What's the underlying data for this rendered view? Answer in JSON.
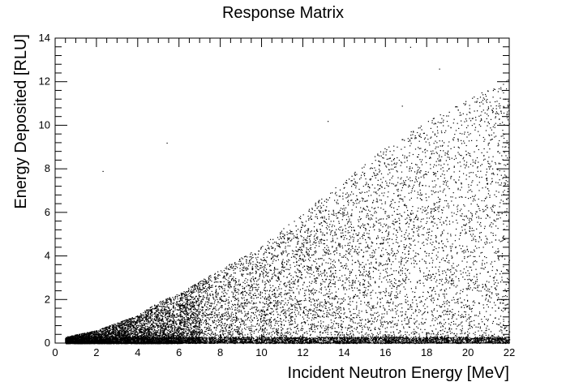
{
  "chart_data": {
    "type": "scatter",
    "title": "Response Matrix",
    "xlabel": "Incident Neutron Energy [MeV]",
    "ylabel": "Energy Deposited [RLU]",
    "xlim": [
      0,
      22
    ],
    "ylim": [
      0,
      14
    ],
    "x_ticks": [
      0,
      2,
      4,
      6,
      8,
      10,
      12,
      14,
      16,
      18,
      20,
      22
    ],
    "y_ticks": [
      0,
      2,
      4,
      6,
      8,
      10,
      12,
      14
    ],
    "x_tick_labels": [
      "0",
      "2",
      "4",
      "6",
      "8",
      "10",
      "12",
      "14",
      "16",
      "18",
      "20",
      "22"
    ],
    "y_tick_labels": [
      "0",
      "2",
      "4",
      "6",
      "8",
      "10",
      "12",
      "14"
    ],
    "grid": false,
    "legend": "none",
    "marker_color": "#000000",
    "series": [
      {
        "x_range": [
          0.5,
          22
        ],
        "y_upper_edge": [
          [
            0.5,
            0.3
          ],
          [
            2,
            0.6
          ],
          [
            4,
            1.3
          ],
          [
            5,
            1.9
          ],
          [
            6,
            2.3
          ],
          [
            8,
            3.4
          ],
          [
            10,
            4.5
          ],
          [
            12,
            6.0
          ],
          [
            14,
            7.5
          ],
          [
            16,
            9.0
          ],
          [
            18,
            10.2
          ],
          [
            20,
            11.2
          ],
          [
            22,
            12.2
          ]
        ],
        "dense_band_y_max": 0.3,
        "outliers": [
          [
            2.3,
            7.9
          ],
          [
            5.4,
            9.2
          ],
          [
            17.2,
            13.6
          ],
          [
            18.6,
            12.6
          ],
          [
            16.8,
            10.9
          ],
          [
            13.2,
            10.2
          ]
        ]
      }
    ]
  }
}
